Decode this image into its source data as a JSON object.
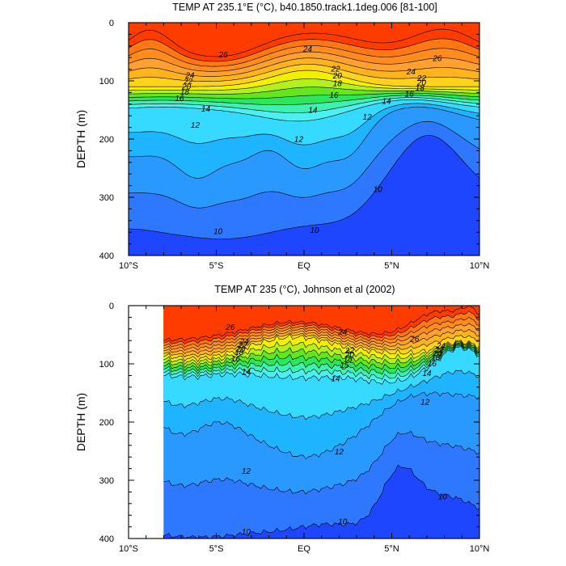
{
  "chart_data": [
    {
      "type": "contour",
      "title": "TEMP AT 235.1°E (°C), b40.1850.track1.1deg.006 [81-100]",
      "ylabel": "DEPTH (m)",
      "xlabel": "",
      "x_ticks": [
        "10°S",
        "5°S",
        "EQ",
        "5°N",
        "10°N"
      ],
      "x_range_deg": [
        -10,
        10
      ],
      "y_ticks": [
        "0",
        "100",
        "200",
        "300",
        "400"
      ],
      "ylim": [
        400,
        0
      ],
      "colors": [
        "#1f46ff",
        "#2e78ff",
        "#2999ff",
        "#1fb4ff",
        "#36d9ff",
        "#4cf0f0",
        "#3ff0b0",
        "#2ee65a",
        "#64e61e",
        "#b4f01e",
        "#f2f000",
        "#ffd21e",
        "#ffb41e",
        "#ffa032",
        "#ff8c1e",
        "#ff7814",
        "#ff3c00"
      ],
      "contour_labels": [
        {
          "text": "26",
          "x": -4.6,
          "d": 55
        },
        {
          "text": "24",
          "x": 0.2,
          "d": 45
        },
        {
          "text": "26",
          "x": 7.6,
          "d": 61
        },
        {
          "text": "24",
          "x": -6.5,
          "d": 90
        },
        {
          "text": "22",
          "x": -6.6,
          "d": 101
        },
        {
          "text": "20",
          "x": -6.7,
          "d": 110
        },
        {
          "text": "18",
          "x": -6.8,
          "d": 119
        },
        {
          "text": "16",
          "x": -7.1,
          "d": 130
        },
        {
          "text": "14",
          "x": -5.6,
          "d": 148
        },
        {
          "text": "12",
          "x": -6.2,
          "d": 176
        },
        {
          "text": "22",
          "x": 1.8,
          "d": 79
        },
        {
          "text": "20",
          "x": 1.9,
          "d": 91
        },
        {
          "text": "18",
          "x": 1.9,
          "d": 104
        },
        {
          "text": "16",
          "x": 1.7,
          "d": 124
        },
        {
          "text": "14",
          "x": 0.5,
          "d": 150
        },
        {
          "text": "12",
          "x": -0.3,
          "d": 200
        },
        {
          "text": "24",
          "x": 6.1,
          "d": 84
        },
        {
          "text": "22",
          "x": 6.7,
          "d": 95
        },
        {
          "text": "20",
          "x": 6.7,
          "d": 103
        },
        {
          "text": "18",
          "x": 6.6,
          "d": 112
        },
        {
          "text": "16",
          "x": 6.0,
          "d": 122
        },
        {
          "text": "14",
          "x": 4.7,
          "d": 135
        },
        {
          "text": "12",
          "x": 3.6,
          "d": 162
        },
        {
          "text": "10",
          "x": 4.2,
          "d": 286
        },
        {
          "text": "10",
          "x": -4.9,
          "d": 358
        },
        {
          "text": "10",
          "x": 0.6,
          "d": 356
        }
      ]
    },
    {
      "type": "contour",
      "title": "TEMP AT 235 (°C), Johnson et al (2002)",
      "ylabel": "DEPTH (m)",
      "xlabel": "",
      "x_ticks": [
        "10°S",
        "5°S",
        "EQ",
        "5°N",
        "10°N"
      ],
      "x_range_deg": [
        -10,
        10
      ],
      "data_x_range_deg": [
        -8,
        10
      ],
      "y_ticks": [
        "0",
        "100",
        "200",
        "300",
        "400"
      ],
      "ylim": [
        400,
        0
      ],
      "colors": [
        "#1f46ff",
        "#2e78ff",
        "#2999ff",
        "#1fb4ff",
        "#36d9ff",
        "#4cf0f0",
        "#3ff0b0",
        "#2ee65a",
        "#64e61e",
        "#b4f01e",
        "#f2f000",
        "#ffd21e",
        "#ffb41e",
        "#ffa032",
        "#ff8c1e",
        "#ff7814",
        "#ff3c00"
      ],
      "contour_labels": [
        {
          "text": "26",
          "x": -4.2,
          "d": 37
        },
        {
          "text": "24",
          "x": -3.4,
          "d": 61
        },
        {
          "text": "22",
          "x": -3.5,
          "d": 68
        },
        {
          "text": "20",
          "x": -3.6,
          "d": 74
        },
        {
          "text": "18",
          "x": -3.7,
          "d": 80
        },
        {
          "text": "16",
          "x": -3.9,
          "d": 91
        },
        {
          "text": "14",
          "x": -3.3,
          "d": 113
        },
        {
          "text": "24",
          "x": 2.2,
          "d": 45
        },
        {
          "text": "22",
          "x": 2.6,
          "d": 77
        },
        {
          "text": "20",
          "x": 2.6,
          "d": 84
        },
        {
          "text": "18",
          "x": 2.5,
          "d": 92
        },
        {
          "text": "15",
          "x": 2.3,
          "d": 102
        },
        {
          "text": "14",
          "x": 1.8,
          "d": 125
        },
        {
          "text": "26",
          "x": 6.3,
          "d": 57
        },
        {
          "text": "24",
          "x": 7.8,
          "d": 69
        },
        {
          "text": "22",
          "x": 7.7,
          "d": 76
        },
        {
          "text": "20",
          "x": 7.6,
          "d": 82
        },
        {
          "text": "18",
          "x": 7.5,
          "d": 89
        },
        {
          "text": "16",
          "x": 7.3,
          "d": 99
        },
        {
          "text": "14",
          "x": 7.0,
          "d": 116
        },
        {
          "text": "12",
          "x": 6.9,
          "d": 165
        },
        {
          "text": "12",
          "x": 2.0,
          "d": 251
        },
        {
          "text": "12",
          "x": -3.3,
          "d": 284
        },
        {
          "text": "10",
          "x": 7.9,
          "d": 328
        },
        {
          "text": "10",
          "x": 2.2,
          "d": 371
        },
        {
          "text": "10",
          "x": -3.3,
          "d": 388
        }
      ]
    }
  ]
}
